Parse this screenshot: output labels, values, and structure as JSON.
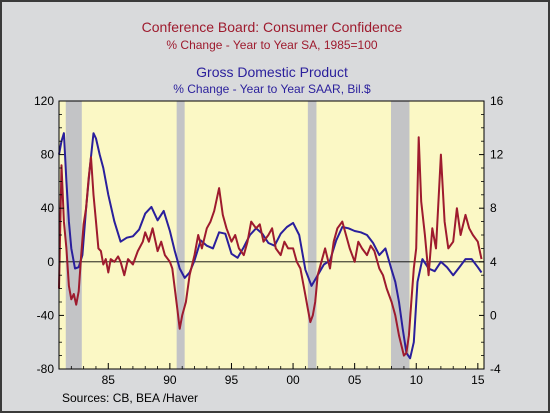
{
  "colors": {
    "background": "#d9dadc",
    "plot_fill": "#fbf8c5",
    "recession": "#c3c4c6",
    "confidence": "#9e1b2e",
    "gdp": "#2a1f9c",
    "axis": "#000000"
  },
  "chart_data": {
    "type": "line",
    "title_1": "Conference Board: Consumer Confidence",
    "subtitle_1": "% Change - Year to Year    SA, 1985=100",
    "title_2": "Gross Domestic Product",
    "subtitle_2": "% Change - Year to Year    SAAR, Bil.$",
    "source": "Sources:  CB, BEA /Haver",
    "x_range": [
      1981.0,
      2015.5
    ],
    "x_ticks": [
      1985,
      1990,
      1995,
      2000,
      2005,
      2010,
      2015
    ],
    "x_tick_labels": [
      "85",
      "90",
      "95",
      "00",
      "05",
      "10",
      "15"
    ],
    "left_axis": {
      "range": [
        -80,
        120
      ],
      "ticks": [
        -80,
        -40,
        0,
        40,
        80,
        120
      ],
      "tick_labels": [
        "-80",
        "-40",
        "0",
        "40",
        "80",
        "120"
      ]
    },
    "right_axis": {
      "range": [
        -4,
        16
      ],
      "ticks": [
        -4,
        0,
        4,
        8,
        12,
        16
      ],
      "tick_labels": [
        "-4",
        "0",
        "4",
        "8",
        "12",
        "16"
      ]
    },
    "recessions": [
      [
        1981.55,
        1982.85
      ],
      [
        1990.55,
        1991.2
      ],
      [
        2001.2,
        2001.9
      ],
      [
        2007.95,
        2009.45
      ]
    ],
    "series": [
      {
        "name": "Conference Board: Consumer Confidence",
        "axis": "left",
        "x": [
          1981.0,
          1981.2,
          1981.4,
          1981.6,
          1981.8,
          1982.0,
          1982.2,
          1982.4,
          1982.6,
          1982.8,
          1983.0,
          1983.2,
          1983.4,
          1983.6,
          1983.8,
          1984.0,
          1984.2,
          1984.4,
          1984.6,
          1984.8,
          1985.0,
          1985.2,
          1985.5,
          1985.8,
          1986.0,
          1986.3,
          1986.6,
          1987.0,
          1987.4,
          1987.8,
          1988.0,
          1988.3,
          1988.6,
          1989.0,
          1989.3,
          1989.6,
          1990.0,
          1990.2,
          1990.4,
          1990.6,
          1990.8,
          1991.0,
          1991.3,
          1991.6,
          1992.0,
          1992.3,
          1992.6,
          1993.0,
          1993.3,
          1993.6,
          1994.0,
          1994.3,
          1994.6,
          1995.0,
          1995.3,
          1995.6,
          1996.0,
          1996.3,
          1996.6,
          1997.0,
          1997.3,
          1997.6,
          1998.0,
          1998.3,
          1998.6,
          1999.0,
          1999.3,
          1999.6,
          2000.0,
          2000.3,
          2000.6,
          2001.0,
          2001.2,
          2001.4,
          2001.6,
          2001.8,
          2002.0,
          2002.3,
          2002.6,
          2003.0,
          2003.3,
          2003.6,
          2004.0,
          2004.3,
          2004.6,
          2005.0,
          2005.3,
          2005.6,
          2006.0,
          2006.3,
          2006.6,
          2007.0,
          2007.3,
          2007.6,
          2008.0,
          2008.3,
          2008.6,
          2009.0,
          2009.2,
          2009.4,
          2009.6,
          2009.8,
          2010.0,
          2010.2,
          2010.4,
          2010.7,
          2011.0,
          2011.3,
          2011.6,
          2012.0,
          2012.3,
          2012.6,
          2013.0,
          2013.3,
          2013.6,
          2014.0,
          2014.3,
          2014.6,
          2015.0,
          2015.3
        ],
        "y": [
          -20,
          72,
          30,
          10,
          -18,
          -28,
          -24,
          -32,
          -22,
          5,
          28,
          40,
          62,
          78,
          50,
          30,
          10,
          8,
          -2,
          2,
          -8,
          2,
          0,
          4,
          0,
          -10,
          2,
          -2,
          8,
          15,
          22,
          15,
          25,
          8,
          15,
          5,
          0,
          -5,
          -20,
          -35,
          -50,
          -40,
          -30,
          -10,
          5,
          20,
          10,
          25,
          30,
          38,
          55,
          35,
          25,
          15,
          20,
          10,
          5,
          15,
          30,
          25,
          28,
          15,
          20,
          25,
          10,
          5,
          15,
          10,
          10,
          0,
          -5,
          -25,
          -35,
          -45,
          -40,
          -30,
          -10,
          0,
          10,
          -5,
          15,
          25,
          30,
          20,
          10,
          0,
          15,
          10,
          5,
          12,
          8,
          -5,
          -10,
          -20,
          -30,
          -40,
          -55,
          -70,
          -68,
          -55,
          -30,
          -5,
          10,
          93,
          45,
          20,
          -10,
          25,
          10,
          80,
          30,
          10,
          15,
          40,
          20,
          35,
          25,
          20,
          15,
          2
        ]
      },
      {
        "name": "Gross Domestic Product",
        "axis": "right",
        "x": [
          1981.0,
          1981.2,
          1981.4,
          1981.6,
          1981.8,
          1982.0,
          1982.3,
          1982.6,
          1982.9,
          1983.2,
          1983.5,
          1983.8,
          1984.0,
          1984.3,
          1984.6,
          1985.0,
          1985.5,
          1986.0,
          1986.5,
          1987.0,
          1987.5,
          1988.0,
          1988.5,
          1989.0,
          1989.5,
          1990.0,
          1990.4,
          1990.8,
          1991.2,
          1991.6,
          1992.0,
          1992.5,
          1993.0,
          1993.5,
          1994.0,
          1994.5,
          1995.0,
          1995.5,
          1996.0,
          1996.5,
          1997.0,
          1997.5,
          1998.0,
          1998.5,
          1999.0,
          1999.5,
          2000.0,
          2000.5,
          2001.0,
          2001.5,
          2002.0,
          2002.5,
          2003.0,
          2003.5,
          2004.0,
          2004.5,
          2005.0,
          2005.5,
          2006.0,
          2006.5,
          2007.0,
          2007.5,
          2008.0,
          2008.3,
          2008.6,
          2008.9,
          2009.2,
          2009.5,
          2009.8,
          2010.1,
          2010.5,
          2011.0,
          2011.5,
          2012.0,
          2012.5,
          2013.0,
          2013.5,
          2014.0,
          2014.5,
          2015.0,
          2015.3
        ],
        "y": [
          12,
          13,
          13.6,
          10,
          7,
          5,
          3.5,
          3.6,
          4.5,
          8,
          11,
          13.6,
          13.2,
          12,
          11,
          9,
          7,
          5.5,
          5.8,
          5.9,
          6.4,
          7.6,
          8.1,
          7.1,
          7.8,
          6.3,
          4.8,
          3.5,
          2.8,
          3.2,
          4.1,
          5.6,
          5.2,
          5.0,
          6.2,
          6.1,
          4.6,
          4.3,
          5.1,
          6.0,
          6.5,
          6.1,
          5.4,
          5.2,
          6.1,
          6.6,
          6.9,
          6.0,
          3.4,
          2.2,
          3.0,
          3.8,
          4.1,
          5.6,
          6.6,
          6.5,
          6.3,
          6.2,
          6.0,
          5.4,
          4.5,
          5.0,
          3.4,
          2.5,
          1.0,
          -1.0,
          -2.8,
          -3.2,
          -2.0,
          2.5,
          4.2,
          3.5,
          3.3,
          4.0,
          3.6,
          3.0,
          3.6,
          4.2,
          4.2,
          3.6,
          3.2
        ]
      }
    ]
  }
}
